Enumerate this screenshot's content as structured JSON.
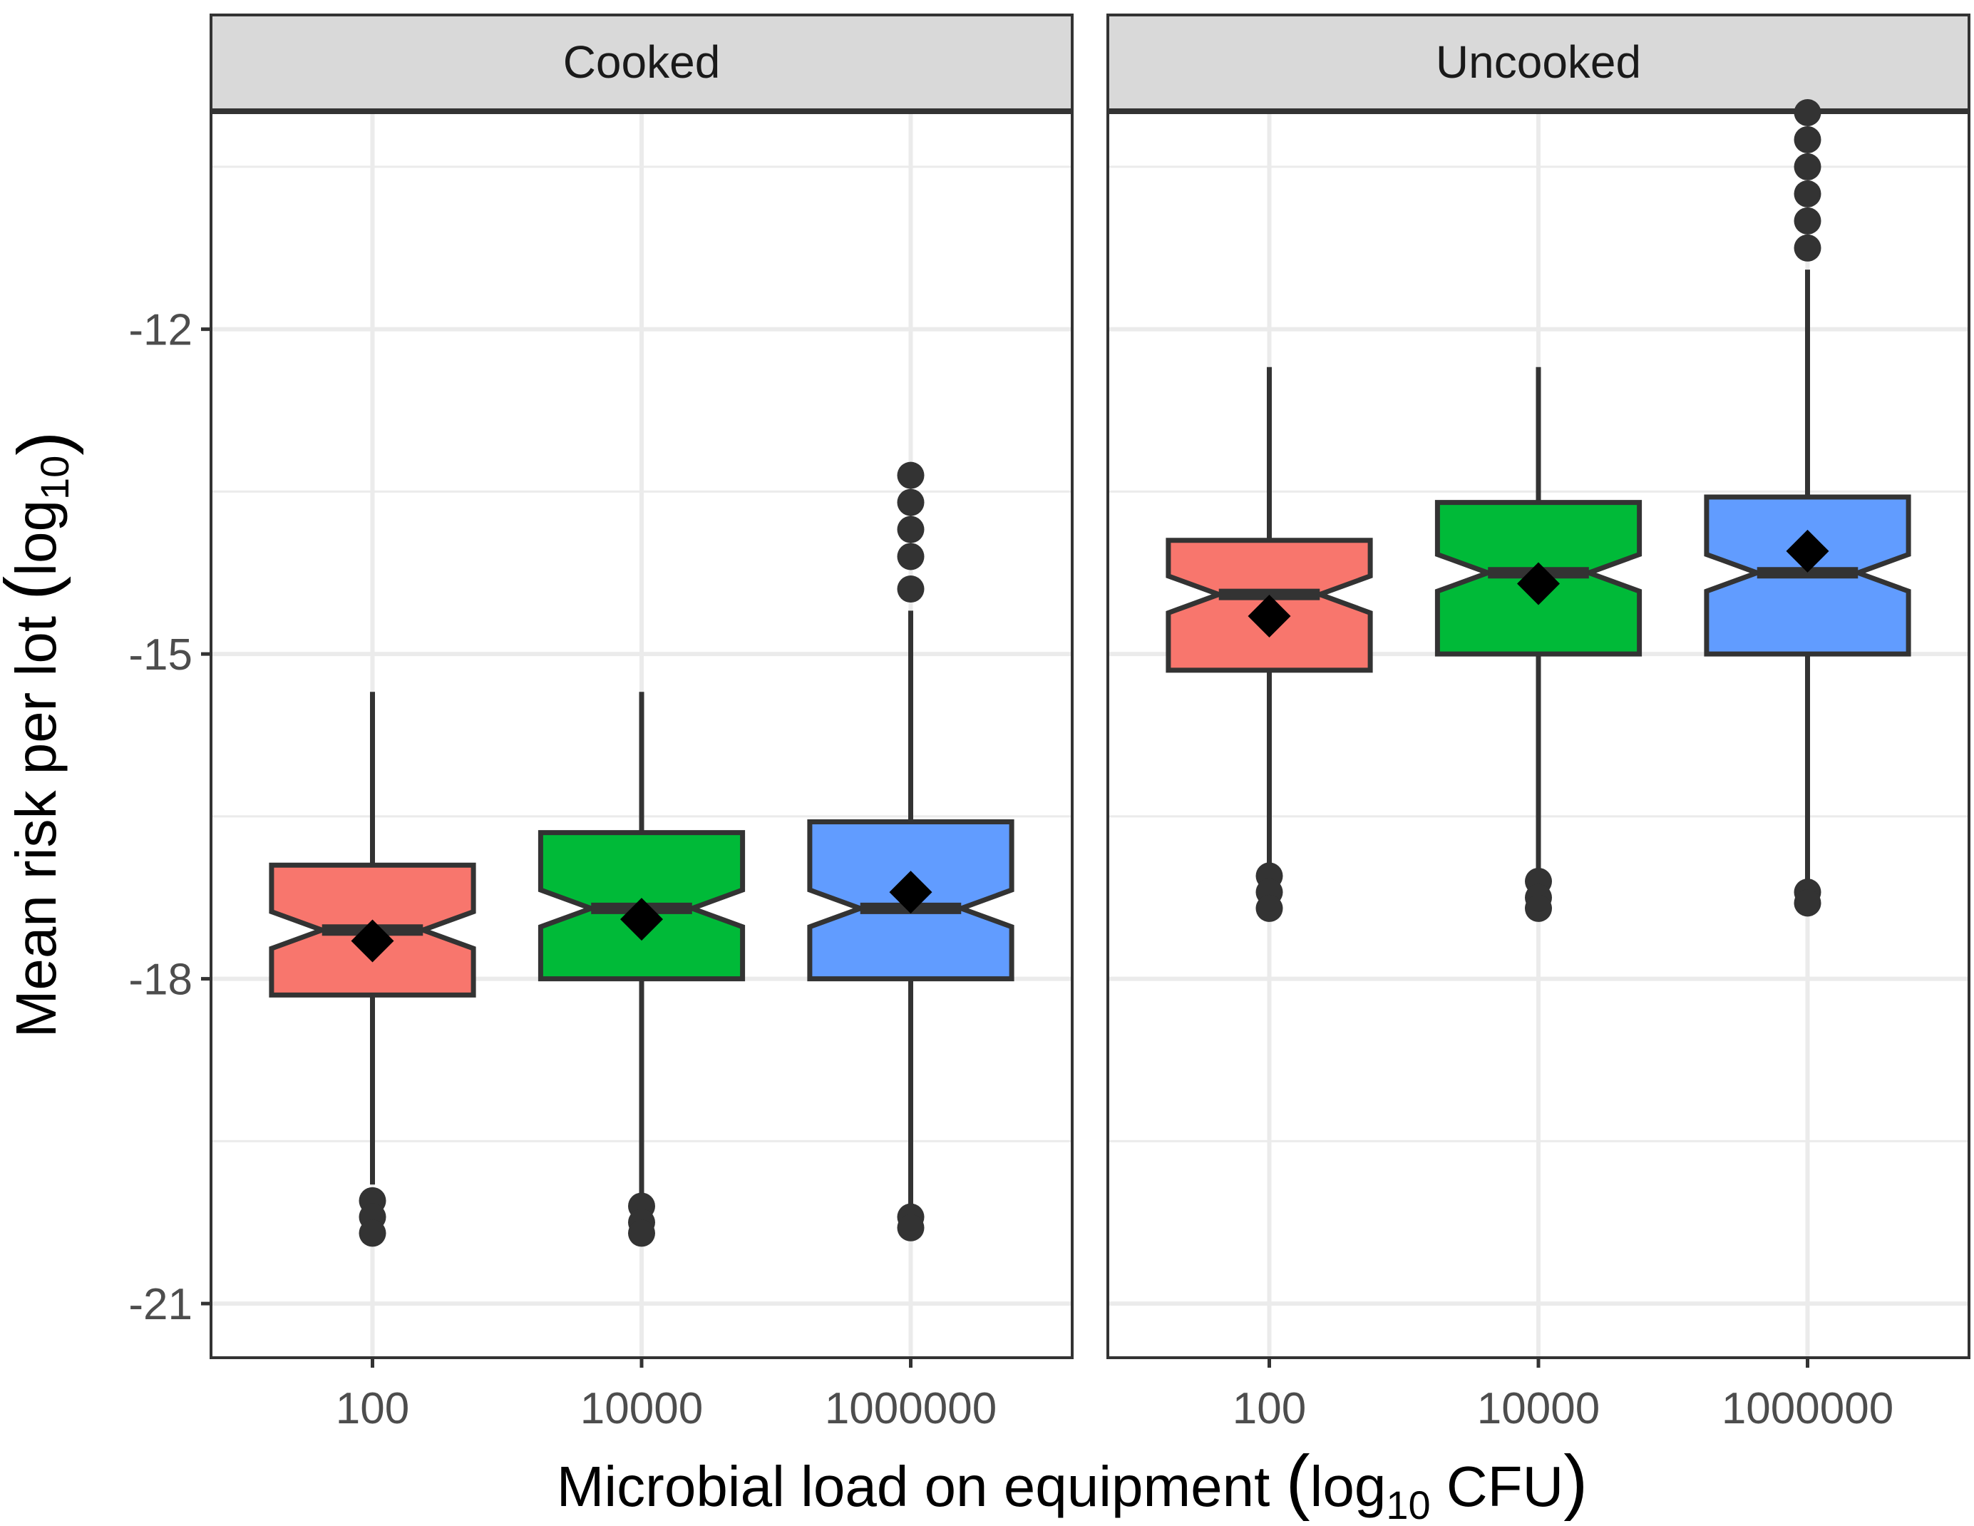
{
  "chart_data": {
    "type": "boxplot",
    "notched": true,
    "facets": [
      "Cooked",
      "Uncooked"
    ],
    "categories": [
      "100",
      "10000",
      "1000000"
    ],
    "xlabel": {
      "prefix": "Microbial load on equipment ",
      "open": "(",
      "main": "log",
      "sub": "10",
      "suffix": " CFU",
      "close": ")"
    },
    "ylabel": {
      "prefix": "Mean risk per lot ",
      "open": "(",
      "main": "log",
      "sub": "10",
      "suffix": "",
      "close": ")"
    },
    "ylim": [
      -21.5,
      -10.0
    ],
    "yticks": [
      -21,
      -18,
      -15,
      -12
    ],
    "ytick_labels": [
      "-21",
      "-18",
      "-15",
      "-12"
    ],
    "fill_colors": [
      "#F8766D",
      "#00BA38",
      "#619CFF"
    ],
    "panel_data": [
      {
        "facet": "Cooked",
        "boxes": [
          {
            "category": "100",
            "whisker_low": -19.9,
            "q1": -18.15,
            "median": -17.55,
            "q3": -16.95,
            "whisker_high": -15.35,
            "notch_low": -17.72,
            "notch_high": -17.38,
            "mean": -17.65,
            "outliers": [
              -20.05,
              -20.2,
              -20.35
            ]
          },
          {
            "category": "10000",
            "whisker_low": -20.0,
            "q1": -18.0,
            "median": -17.35,
            "q3": -16.65,
            "whisker_high": -15.35,
            "notch_low": -17.52,
            "notch_high": -17.18,
            "mean": -17.45,
            "outliers": [
              -20.1,
              -20.25,
              -20.35
            ]
          },
          {
            "category": "1000000",
            "whisker_low": -20.1,
            "q1": -18.0,
            "median": -17.35,
            "q3": -16.55,
            "whisker_high": -14.6,
            "notch_low": -17.52,
            "notch_high": -17.18,
            "mean": -17.2,
            "outliers": [
              -20.2,
              -20.3,
              -14.4,
              -14.1,
              -13.85,
              -13.6,
              -13.35
            ]
          }
        ]
      },
      {
        "facet": "Uncooked",
        "boxes": [
          {
            "category": "100",
            "whisker_low": -16.95,
            "q1": -15.15,
            "median": -14.45,
            "q3": -13.95,
            "whisker_high": -12.35,
            "notch_low": -14.62,
            "notch_high": -14.28,
            "mean": -14.65,
            "outliers": [
              -17.05,
              -17.2,
              -17.35
            ]
          },
          {
            "category": "10000",
            "whisker_low": -17.05,
            "q1": -15.0,
            "median": -14.25,
            "q3": -13.6,
            "whisker_high": -12.35,
            "notch_low": -14.42,
            "notch_high": -14.08,
            "mean": -14.35,
            "outliers": [
              -17.1,
              -17.25,
              -17.35
            ]
          },
          {
            "category": "1000000",
            "whisker_low": -17.15,
            "q1": -15.0,
            "median": -14.25,
            "q3": -13.55,
            "whisker_high": -11.45,
            "notch_low": -14.42,
            "notch_high": -14.08,
            "mean": -14.05,
            "outliers": [
              -17.2,
              -17.3,
              -11.25,
              -11.0,
              -10.75,
              -10.5,
              -10.25,
              -10.0
            ]
          }
        ]
      }
    ]
  }
}
